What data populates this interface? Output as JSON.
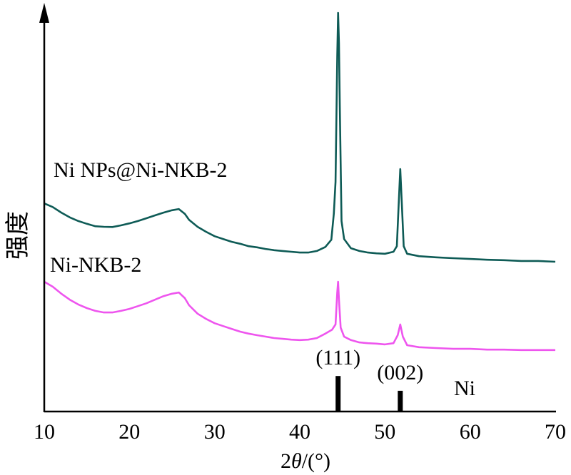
{
  "chart_data": {
    "type": "line",
    "title": "",
    "xlabel": "2θ/(°)",
    "ylabel": "强度",
    "xlim": [
      10,
      70
    ],
    "ylim": [
      0,
      100
    ],
    "x_ticks": [
      10,
      20,
      30,
      40,
      50,
      60,
      70
    ],
    "y_ticks": [],
    "grid": false,
    "legend": "inline labels above each curve",
    "series": [
      {
        "name": "Ni NPs@Ni-NKB-2",
        "color": "#0e5b56",
        "x": [
          10,
          11,
          12,
          13,
          14,
          15,
          16,
          17,
          18,
          19,
          20,
          21,
          22,
          23,
          24,
          25,
          25.8,
          26.5,
          27,
          28,
          29,
          30,
          31,
          32,
          33,
          34,
          35,
          36,
          37,
          38,
          39,
          40,
          41,
          42,
          43,
          43.7,
          44.0,
          44.2,
          44.4,
          44.5,
          44.6,
          44.7,
          44.9,
          45.2,
          46,
          47,
          48,
          49,
          50,
          51,
          51.4,
          51.6,
          51.8,
          52.0,
          52.2,
          52.6,
          54,
          56,
          58,
          60,
          62,
          64,
          66,
          68,
          70
        ],
        "y": [
          52.1,
          51.2,
          49.8,
          48.6,
          47.7,
          47.0,
          46.4,
          46.25,
          46.2,
          46.6,
          47.1,
          47.7,
          48.4,
          49.1,
          49.8,
          50.4,
          50.7,
          49.5,
          48.0,
          46.25,
          45.0,
          43.9,
          43.2,
          42.5,
          42.0,
          41.4,
          41.1,
          40.7,
          40.4,
          40.2,
          40.0,
          39.8,
          39.8,
          40.2,
          41.2,
          43.0,
          49.5,
          57.5,
          88.8,
          99.8,
          92.3,
          76.2,
          47.7,
          43.2,
          40.9,
          40.2,
          39.8,
          39.6,
          39.5,
          40.0,
          41.4,
          51.2,
          60.7,
          51.2,
          41.4,
          39.5,
          38.9,
          38.6,
          38.4,
          38.2,
          38.0,
          37.9,
          37.7,
          37.7,
          37.5
        ]
      },
      {
        "name": "Ni-NKB-2",
        "color": "#ee55ee",
        "x": [
          10,
          11,
          12,
          13,
          14,
          15,
          16,
          17,
          18,
          19,
          20,
          21,
          22,
          23,
          24,
          25,
          25.8,
          26.5,
          27,
          28,
          29,
          30,
          31,
          32,
          33,
          34,
          35,
          36,
          37,
          38,
          39,
          40,
          41,
          42,
          43,
          43.8,
          44.2,
          44.4,
          44.5,
          44.6,
          44.8,
          45.2,
          46,
          47,
          48,
          49,
          50,
          51,
          51.5,
          51.8,
          52.1,
          52.6,
          54,
          56,
          58,
          60,
          62,
          64,
          66,
          68,
          70
        ],
        "y": [
          32.5,
          31.25,
          29.5,
          28.0,
          26.8,
          25.9,
          25.2,
          24.8,
          24.8,
          25.2,
          25.7,
          26.4,
          27.1,
          28.0,
          28.9,
          29.5,
          29.8,
          28.4,
          26.6,
          24.5,
          23.2,
          22.1,
          21.4,
          20.7,
          20.0,
          19.5,
          19.1,
          18.75,
          18.4,
          18.2,
          18.0,
          17.9,
          18.0,
          18.4,
          19.5,
          20.5,
          21.8,
          29.8,
          32.5,
          28.0,
          21.0,
          18.75,
          17.9,
          17.3,
          17.1,
          17.0,
          16.8,
          17.1,
          19.1,
          21.8,
          18.75,
          16.6,
          16.1,
          15.9,
          15.7,
          15.7,
          15.5,
          15.5,
          15.4,
          15.4,
          15.4
        ]
      }
    ],
    "reference": {
      "name": "Ni",
      "color": "#000000",
      "peaks": [
        {
          "x": 44.5,
          "intensity": 8.9,
          "label": "(111)"
        },
        {
          "x": 51.8,
          "intensity": 5.2,
          "label": "(002)"
        }
      ]
    }
  }
}
